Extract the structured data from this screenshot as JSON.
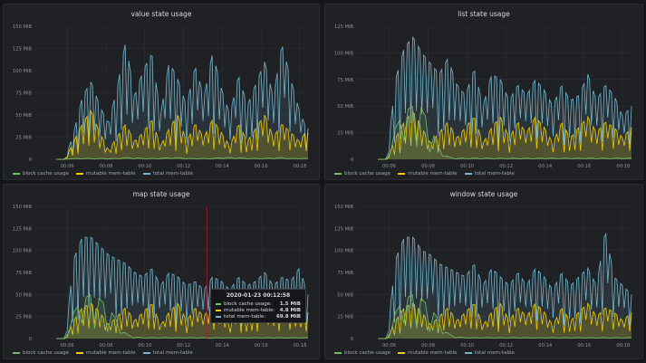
{
  "colors": {
    "block_cache": "#73bf69",
    "mutable": "#f2cc0c",
    "total": "#73b7cf",
    "grid": "#2c2f35",
    "axis_text": "#8e949b",
    "cursor": "#c4162a"
  },
  "legend": {
    "items": [
      {
        "label": "block cache usage",
        "color": "#73bf69"
      },
      {
        "label": "mutable mem-table",
        "color": "#f2cc0c"
      },
      {
        "label": "total mem-table",
        "color": "#73b7cf"
      }
    ]
  },
  "chart_data": [
    {
      "type": "area",
      "title": "value state usage",
      "x_ticks": [
        "00:06",
        "00:08",
        "00:10",
        "00:12",
        "00:14",
        "00:16",
        "00:18"
      ],
      "y_ticks": [
        "0",
        "25 MiB",
        "50 MiB",
        "75 MiB",
        "100 MiB",
        "125 MiB",
        "150 MiB"
      ],
      "ylim": [
        0,
        150
      ],
      "x_range": [
        "00:05",
        "00:18:30"
      ],
      "series": [
        {
          "name": "block cache usage",
          "values": [
            0,
            0,
            1,
            1,
            1,
            1,
            1,
            1,
            2,
            2,
            1,
            1,
            1,
            2,
            2,
            1,
            1,
            1,
            1,
            2,
            2,
            2,
            1,
            1,
            1,
            2,
            2,
            1,
            1,
            1
          ]
        },
        {
          "name": "mutable mem-table",
          "values": [
            0,
            0,
            20,
            40,
            55,
            30,
            10,
            25,
            40,
            20,
            30,
            45,
            15,
            35,
            50,
            20,
            40,
            25,
            45,
            30,
            15,
            40,
            20,
            35,
            50,
            25,
            40,
            30,
            20,
            35
          ]
        },
        {
          "name": "total mem-table",
          "values": [
            0,
            0,
            30,
            70,
            88,
            60,
            40,
            80,
            133,
            70,
            100,
            120,
            50,
            110,
            90,
            60,
            105,
            70,
            120,
            80,
            50,
            95,
            60,
            85,
            110,
            70,
            130,
            90,
            55,
            30
          ]
        }
      ]
    },
    {
      "type": "area",
      "title": "list state usage",
      "x_ticks": [
        "00:06",
        "00:08",
        "00:10",
        "00:12",
        "00:14",
        "00:16",
        "00:18"
      ],
      "y_ticks": [
        "0",
        "25 MiB",
        "50 MiB",
        "75 MiB",
        "100 MiB",
        "125 MiB"
      ],
      "ylim": [
        0,
        125
      ],
      "x_range": [
        "00:05",
        "00:18:30"
      ],
      "series": [
        {
          "name": "block cache usage",
          "values": [
            0,
            0,
            30,
            45,
            50,
            48,
            30,
            10,
            2,
            1,
            1,
            1,
            1,
            1,
            1,
            1,
            1,
            1,
            1,
            1,
            1,
            1,
            1,
            1,
            1,
            1,
            1,
            1,
            1,
            1
          ]
        },
        {
          "name": "mutable mem-table",
          "values": [
            0,
            0,
            20,
            35,
            45,
            30,
            15,
            25,
            35,
            20,
            30,
            40,
            15,
            30,
            40,
            20,
            35,
            25,
            40,
            30,
            15,
            35,
            20,
            30,
            40,
            25,
            35,
            30,
            20,
            30
          ]
        },
        {
          "name": "total mem-table",
          "values": [
            0,
            0,
            75,
            105,
            115,
            100,
            90,
            80,
            95,
            70,
            60,
            85,
            50,
            80,
            75,
            55,
            70,
            60,
            75,
            65,
            50,
            70,
            55,
            60,
            80,
            55,
            70,
            60,
            40,
            50
          ]
        }
      ]
    },
    {
      "type": "area",
      "title": "map state usage",
      "x_ticks": [
        "00:06",
        "00:08",
        "00:10",
        "00:12",
        "00:14",
        "00:16",
        "00:18"
      ],
      "y_ticks": [
        "0",
        "25 MiB",
        "50 MiB",
        "75 MiB",
        "100 MiB",
        "125 MiB",
        "150 MiB"
      ],
      "ylim": [
        0,
        150
      ],
      "x_range": [
        "00:05",
        "00:18:30"
      ],
      "series": [
        {
          "name": "block cache usage",
          "values": [
            0,
            0,
            30,
            45,
            50,
            45,
            35,
            20,
            5,
            2,
            1,
            1,
            1,
            1,
            1,
            1,
            1,
            1,
            1,
            1,
            1,
            1,
            1,
            1,
            1,
            1,
            1,
            1,
            1,
            1
          ]
        },
        {
          "name": "mutable mem-table",
          "values": [
            0,
            0,
            20,
            35,
            40,
            30,
            15,
            25,
            35,
            20,
            30,
            40,
            15,
            30,
            40,
            20,
            35,
            25,
            40,
            30,
            15,
            35,
            20,
            30,
            40,
            25,
            35,
            30,
            20,
            30
          ]
        },
        {
          "name": "total mem-table",
          "values": [
            0,
            0,
            90,
            115,
            115,
            105,
            95,
            90,
            85,
            75,
            70,
            80,
            60,
            75,
            70,
            60,
            65,
            55,
            70,
            65,
            55,
            70,
            60,
            65,
            75,
            60,
            70,
            65,
            80,
            50
          ]
        }
      ]
    },
    {
      "type": "area",
      "title": "window state usage",
      "x_ticks": [
        "00:06",
        "00:08",
        "00:10",
        "00:12",
        "00:14",
        "00:16",
        "00:18"
      ],
      "y_ticks": [
        "0",
        "25 MiB",
        "50 MiB",
        "75 MiB",
        "100 MiB",
        "125 MiB",
        "150 MiB"
      ],
      "ylim": [
        0,
        150
      ],
      "x_range": [
        "00:05",
        "00:18:30"
      ],
      "series": [
        {
          "name": "block cache usage",
          "values": [
            0,
            0,
            30,
            45,
            50,
            45,
            35,
            20,
            5,
            2,
            1,
            1,
            1,
            1,
            1,
            1,
            1,
            1,
            1,
            1,
            1,
            1,
            1,
            1,
            1,
            1,
            1,
            1,
            1,
            1
          ]
        },
        {
          "name": "mutable mem-table",
          "values": [
            0,
            0,
            20,
            35,
            40,
            30,
            15,
            25,
            35,
            20,
            30,
            40,
            15,
            30,
            40,
            20,
            35,
            25,
            40,
            30,
            15,
            35,
            20,
            30,
            40,
            25,
            35,
            30,
            20,
            30
          ]
        },
        {
          "name": "total mem-table",
          "values": [
            0,
            0,
            90,
            115,
            115,
            100,
            95,
            85,
            80,
            75,
            70,
            85,
            60,
            80,
            70,
            60,
            75,
            60,
            80,
            70,
            55,
            75,
            60,
            70,
            80,
            60,
            123,
            70,
            60,
            50
          ]
        }
      ]
    }
  ],
  "tooltip": {
    "time": "2020-01-23 00:12:58",
    "rows": [
      {
        "label": "block cache usage:",
        "value": "1.5 MiB",
        "color": "#73bf69"
      },
      {
        "label": "mutable mem-table:",
        "value": "4.8 MiB",
        "color": "#f2cc0c"
      },
      {
        "label": "total mem-table:",
        "value": "69.8 MiB",
        "color": "#73b7cf"
      }
    ]
  }
}
